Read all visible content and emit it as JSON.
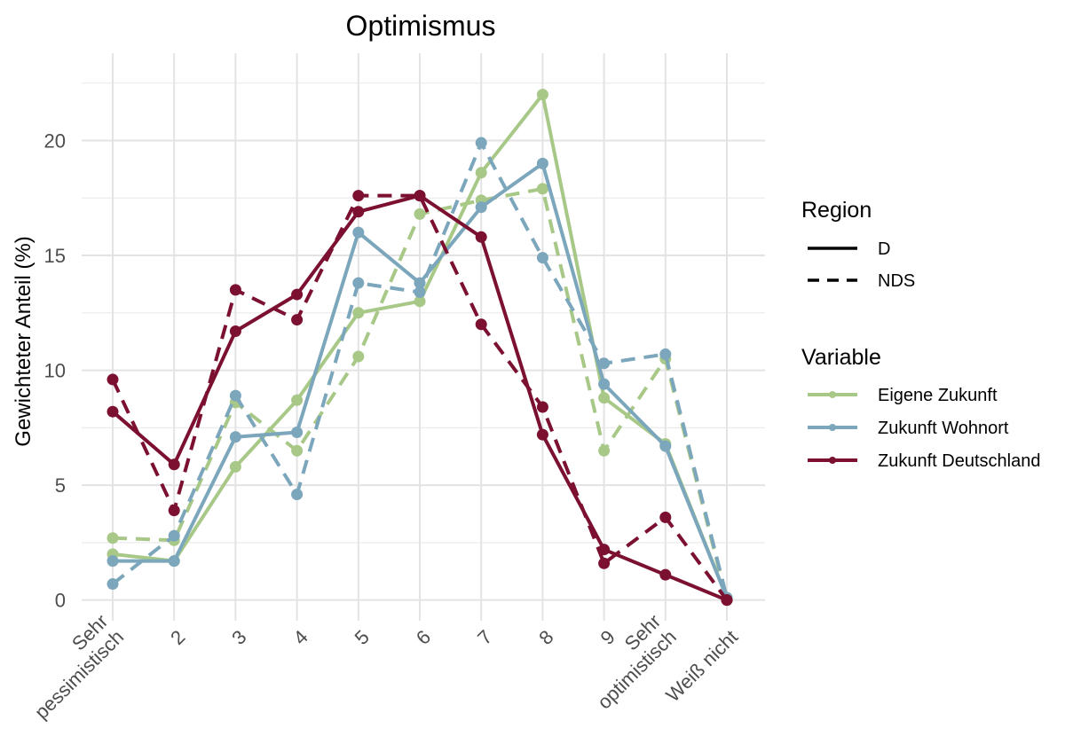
{
  "chart_data": {
    "type": "line",
    "title": "Optimismus",
    "xlabel": "",
    "ylabel": "Gewichteter Anteil (%)",
    "categories": [
      "Sehr\npessimistisch",
      "2",
      "3",
      "4",
      "5",
      "6",
      "7",
      "8",
      "9",
      "Sehr\noptimistisch",
      "Weiß nicht"
    ],
    "yticks": [
      0,
      5,
      10,
      15,
      20
    ],
    "ylim": [
      -0.9,
      23.8
    ],
    "grid": true,
    "legend_placement": "right",
    "legends": {
      "region": {
        "title": "Region",
        "entries": [
          {
            "label": "D",
            "linetype": "solid"
          },
          {
            "label": "NDS",
            "linetype": "dashed"
          }
        ]
      },
      "variable": {
        "title": "Variable",
        "entries": [
          {
            "label": "Eigene Zukunft",
            "color": "#a8c888"
          },
          {
            "label": "Zukunft Wohnort",
            "color": "#7ba6bb"
          },
          {
            "label": "Zukunft Deutschland",
            "color": "#7b1030"
          }
        ]
      }
    },
    "series": [
      {
        "name": "Eigene Zukunft",
        "region": "D",
        "color": "#a8c888",
        "linetype": "solid",
        "values": [
          2.0,
          1.7,
          5.8,
          8.7,
          12.5,
          13.0,
          18.6,
          22.0,
          8.8,
          6.8,
          0.1
        ]
      },
      {
        "name": "Eigene Zukunft",
        "region": "NDS",
        "color": "#a8c888",
        "linetype": "dashed",
        "values": [
          2.7,
          2.6,
          8.6,
          6.5,
          10.6,
          16.8,
          17.4,
          17.9,
          6.5,
          10.5,
          0.0
        ]
      },
      {
        "name": "Zukunft Wohnort",
        "region": "D",
        "color": "#7ba6bb",
        "linetype": "solid",
        "values": [
          1.7,
          1.7,
          7.1,
          7.3,
          16.0,
          13.8,
          17.1,
          19.0,
          9.4,
          6.7,
          0.1
        ]
      },
      {
        "name": "Zukunft Wohnort",
        "region": "NDS",
        "color": "#7ba6bb",
        "linetype": "dashed",
        "values": [
          0.7,
          2.8,
          8.9,
          4.6,
          13.8,
          13.4,
          19.9,
          14.9,
          10.3,
          10.7,
          0.1
        ]
      },
      {
        "name": "Zukunft Deutschland",
        "region": "D",
        "color": "#7b1030",
        "linetype": "solid",
        "values": [
          8.2,
          5.9,
          11.7,
          13.3,
          16.9,
          17.6,
          15.8,
          7.2,
          2.2,
          1.1,
          0.0
        ]
      },
      {
        "name": "Zukunft Deutschland",
        "region": "NDS",
        "color": "#7b1030",
        "linetype": "dashed",
        "values": [
          9.6,
          3.9,
          13.5,
          12.2,
          17.6,
          17.6,
          12.0,
          8.4,
          1.6,
          3.6,
          0.0
        ]
      }
    ]
  }
}
